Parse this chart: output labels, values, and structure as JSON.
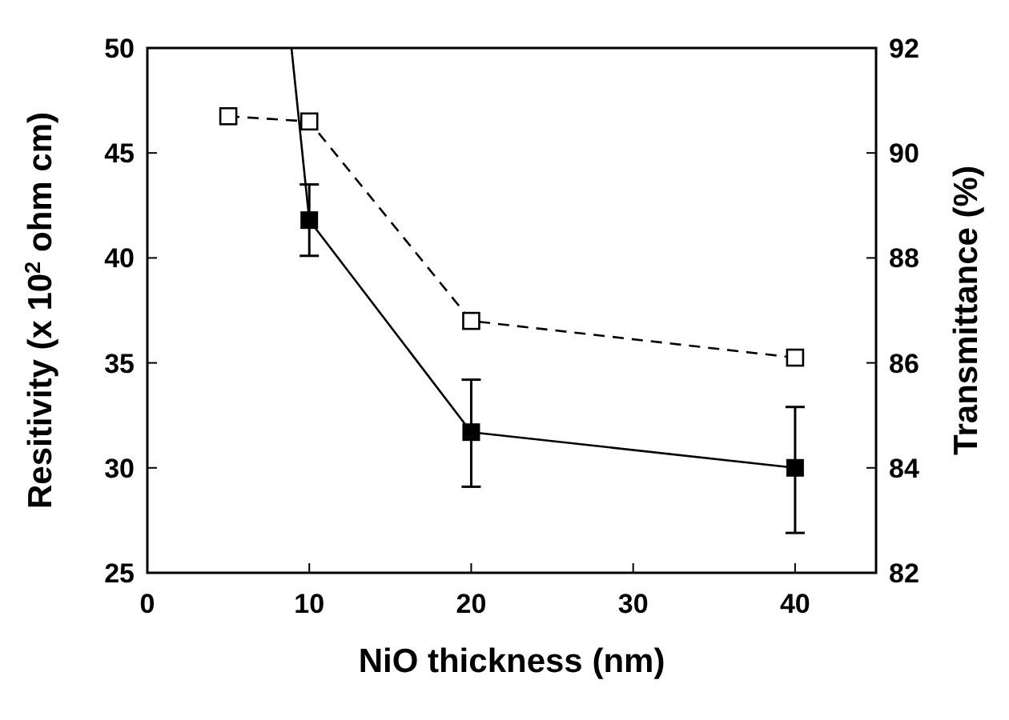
{
  "chart_data": {
    "type": "line",
    "xlabel": "NiO thickness (nm)",
    "ylabel": "Resitivity (x 10$^{2}$ ohm cm)",
    "y2label": "Transmittance (%)",
    "xlim": [
      0,
      45
    ],
    "xticks": [
      0,
      10,
      20,
      30,
      40
    ],
    "ylim": [
      25,
      50
    ],
    "yticks": [
      25,
      30,
      35,
      40,
      45,
      50
    ],
    "y2lim": [
      82,
      92
    ],
    "y2ticks": [
      82,
      84,
      86,
      88,
      90,
      92
    ],
    "grid": false,
    "series": [
      {
        "color": "#000000",
        "x": [
          10,
          20,
          40
        ],
        "values": [
          41.8,
          31.7,
          30.0
        ],
        "errors": [
          [
            40.1,
            43.5
          ],
          [
            29.1,
            34.2
          ],
          [
            26.9,
            32.9
          ]
        ],
        "marker": "square",
        "line_style": "solid"
      },
      {
        "color": "#000000",
        "x": [
          8.9,
          10
        ],
        "values": [
          50,
          41.8
        ],
        "marker": "none",
        "line_style": "solid"
      },
      {
        "color": "#000000",
        "x": [
          5,
          10,
          20,
          40
        ],
        "values": [
          90.7,
          90.6,
          86.8,
          86.1
        ],
        "axis": "y2",
        "marker": "square",
        "line_style": "dashed"
      }
    ]
  }
}
